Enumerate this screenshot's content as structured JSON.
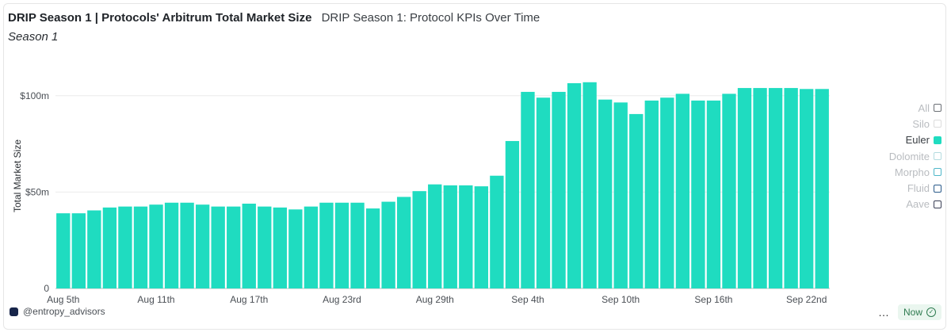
{
  "header": {
    "title": "DRIP Season 1 | Protocols' Arbitrum Total Market Size",
    "subtitle_link": "DRIP Season 1: Protocol KPIs Over Time",
    "season": "Season 1"
  },
  "legend": [
    {
      "label": "All",
      "color": "#6b6f75",
      "active": false
    },
    {
      "label": "Silo",
      "color": "#dcdcdc",
      "active": false
    },
    {
      "label": "Euler",
      "color": "#1fdcc0",
      "active": true
    },
    {
      "label": "Dolomite",
      "color": "#b5dce0",
      "active": false
    },
    {
      "label": "Morpho",
      "color": "#4fb7c9",
      "active": false
    },
    {
      "label": "Fluid",
      "color": "#2a5a8a",
      "active": false
    },
    {
      "label": "Aave",
      "color": "#3a3f55",
      "active": false
    }
  ],
  "footer": {
    "handle": "@entropy_advisors",
    "status": "Now",
    "more_icon": "…"
  },
  "chart_data": {
    "type": "bar",
    "ylabel": "Total Market Size",
    "ylim": [
      0,
      125
    ],
    "yticks": [
      {
        "value": 0,
        "label": "0"
      },
      {
        "value": 50,
        "label": "$50m"
      },
      {
        "value": 100,
        "label": "$100m"
      }
    ],
    "xticks": [
      {
        "index": 0,
        "label": "Aug 5th"
      },
      {
        "index": 6,
        "label": "Aug 11th"
      },
      {
        "index": 12,
        "label": "Aug 17th"
      },
      {
        "index": 18,
        "label": "Aug 23rd"
      },
      {
        "index": 24,
        "label": "Aug 29th"
      },
      {
        "index": 30,
        "label": "Sep 4th"
      },
      {
        "index": 36,
        "label": "Sep 10th"
      },
      {
        "index": 42,
        "label": "Sep 16th"
      },
      {
        "index": 48,
        "label": "Sep 22nd"
      }
    ],
    "series": [
      {
        "color": "#1fdcc0",
        "values": [
          39,
          39,
          40.5,
          42,
          42.5,
          42.5,
          43.5,
          44.5,
          44.5,
          43.5,
          42.5,
          42.5,
          44,
          42.5,
          42,
          41,
          42.5,
          44.5,
          44.5,
          44.5,
          41.5,
          45,
          47.5,
          50.5,
          54,
          53.5,
          53.5,
          53,
          58.5,
          76.5,
          102,
          99,
          102,
          106.5,
          107,
          98,
          96.5,
          90.5,
          97.5,
          99,
          101,
          97.5,
          97.5,
          101,
          104,
          104,
          104,
          104,
          103.5,
          103.5
        ]
      }
    ]
  }
}
